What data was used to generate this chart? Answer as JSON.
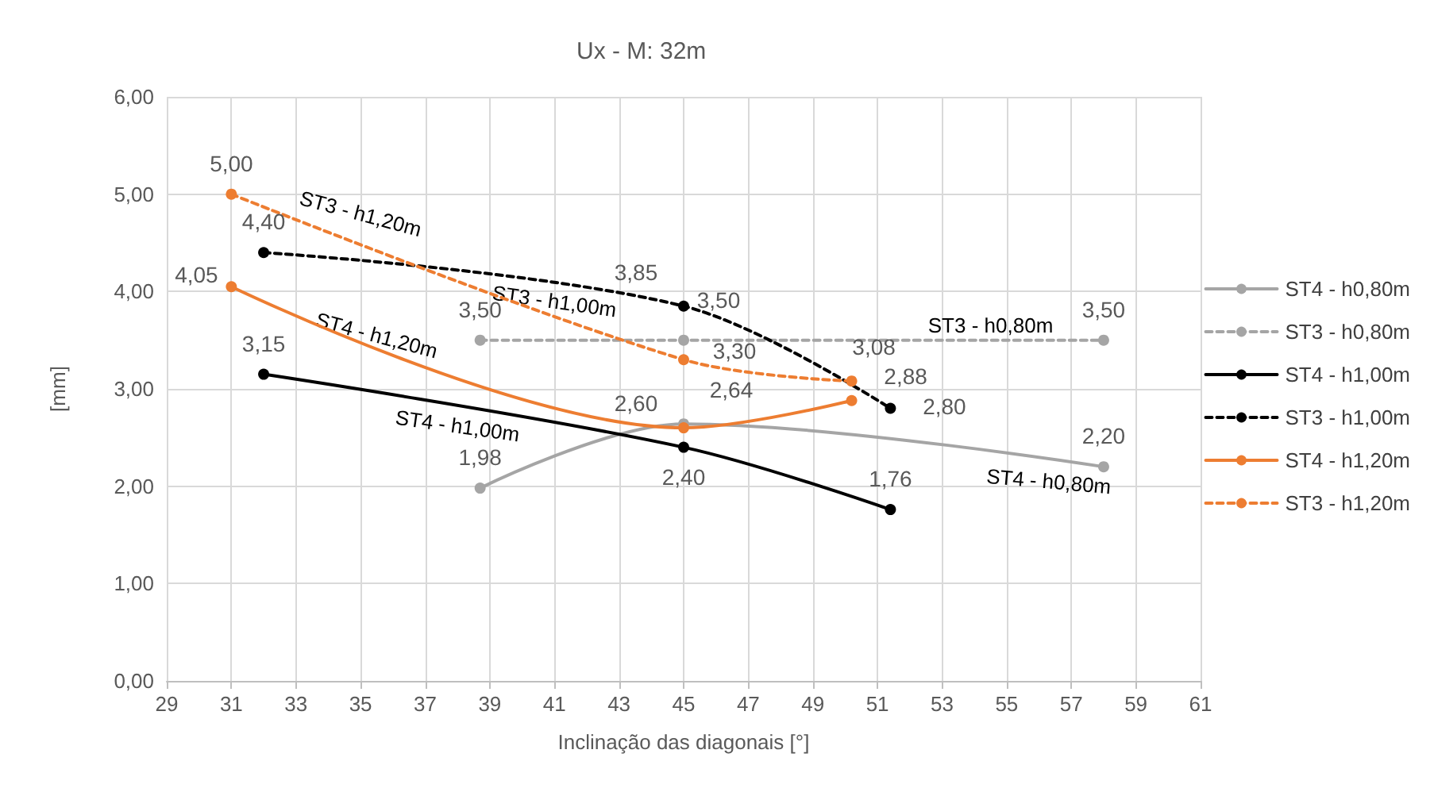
{
  "chart_data": {
    "type": "line",
    "title": "Ux - M: 32m",
    "xlabel": "Inclinação das diagonais [°]",
    "ylabel": "[mm]",
    "xlim": [
      29,
      61
    ],
    "xticks": [
      29,
      31,
      33,
      35,
      37,
      39,
      41,
      43,
      45,
      47,
      49,
      51,
      53,
      55,
      57,
      59,
      61
    ],
    "ylim": [
      0,
      6
    ],
    "yticks": [
      {
        "value": 0,
        "label": "0,00"
      },
      {
        "value": 1,
        "label": "1,00"
      },
      {
        "value": 2,
        "label": "2,00"
      },
      {
        "value": 3,
        "label": "3,00"
      },
      {
        "value": 4,
        "label": "4,00"
      },
      {
        "value": 5,
        "label": "5,00"
      },
      {
        "value": 6,
        "label": "6,00"
      }
    ],
    "grid": true,
    "legend": "right",
    "marker": "circle",
    "series": [
      {
        "name": "ST4 - h0,80m",
        "color": "#a5a5a5",
        "line_style": "solid",
        "x": [
          38.7,
          45,
          58
        ],
        "values": [
          1.98,
          2.64,
          2.2
        ],
        "value_labels": [
          "1,98",
          "2,64",
          "2,20"
        ]
      },
      {
        "name": "ST3 - h0,80m",
        "color": "#a5a5a5",
        "line_style": "dashed",
        "x": [
          38.7,
          45,
          58
        ],
        "values": [
          3.5,
          3.5,
          3.5
        ],
        "value_labels": [
          "3,50",
          "3,50",
          "3,50"
        ]
      },
      {
        "name": "ST4 - h1,00m",
        "color": "#000000",
        "line_style": "solid",
        "x": [
          32,
          45,
          51.4
        ],
        "values": [
          3.15,
          2.4,
          1.76
        ],
        "value_labels": [
          "3,15",
          "2,40",
          "1,76"
        ]
      },
      {
        "name": "ST3 - h1,00m",
        "color": "#000000",
        "line_style": "dashed",
        "x": [
          32,
          45,
          51.4
        ],
        "values": [
          4.4,
          3.85,
          2.8
        ],
        "value_labels": [
          "4,40",
          "3,85",
          "2,80"
        ]
      },
      {
        "name": "ST4 - h1,20m",
        "color": "#ed7d31",
        "line_style": "solid",
        "x": [
          31,
          45,
          50.2
        ],
        "values": [
          4.05,
          2.6,
          2.88
        ],
        "value_labels": [
          "4,05",
          "2,60",
          "2,88"
        ]
      },
      {
        "name": "ST3 - h1,20m",
        "color": "#ed7d31",
        "line_style": "dashed",
        "x": [
          31,
          45,
          50.2
        ],
        "values": [
          5.0,
          3.3,
          3.08
        ],
        "value_labels": [
          "5,00",
          "3,30",
          "3,08"
        ]
      }
    ],
    "annotations": [
      "ST4 - h0,80m",
      "ST3 - h0,80m",
      "ST4 - h1,00m",
      "ST3 - h1,00m",
      "ST4 - h1,20m",
      "ST3 - h1,20m"
    ]
  }
}
